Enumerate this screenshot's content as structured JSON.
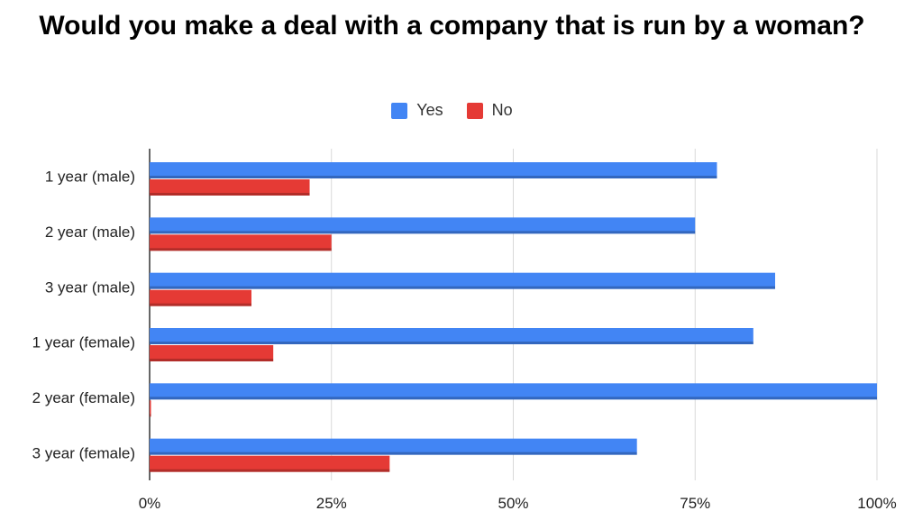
{
  "chart_data": {
    "type": "bar",
    "orientation": "horizontal",
    "title": "Would you make a deal with a company that is run by a woman?",
    "categories": [
      "1 year (male)",
      "2 year (male)",
      "3 year (male)",
      "1 year (female)",
      "2 year (female)",
      "3 year (female)"
    ],
    "series": [
      {
        "name": "Yes",
        "color": "#4285f4",
        "values": [
          78,
          75,
          86,
          83,
          100,
          67
        ]
      },
      {
        "name": "No",
        "color": "#e53a35",
        "values": [
          22,
          25,
          14,
          17,
          0,
          33
        ]
      }
    ],
    "xlim": [
      0,
      100
    ],
    "x_ticks": [
      "0%",
      "25%",
      "50%",
      "75%",
      "100%"
    ],
    "grid": true,
    "legend_position": "top"
  }
}
